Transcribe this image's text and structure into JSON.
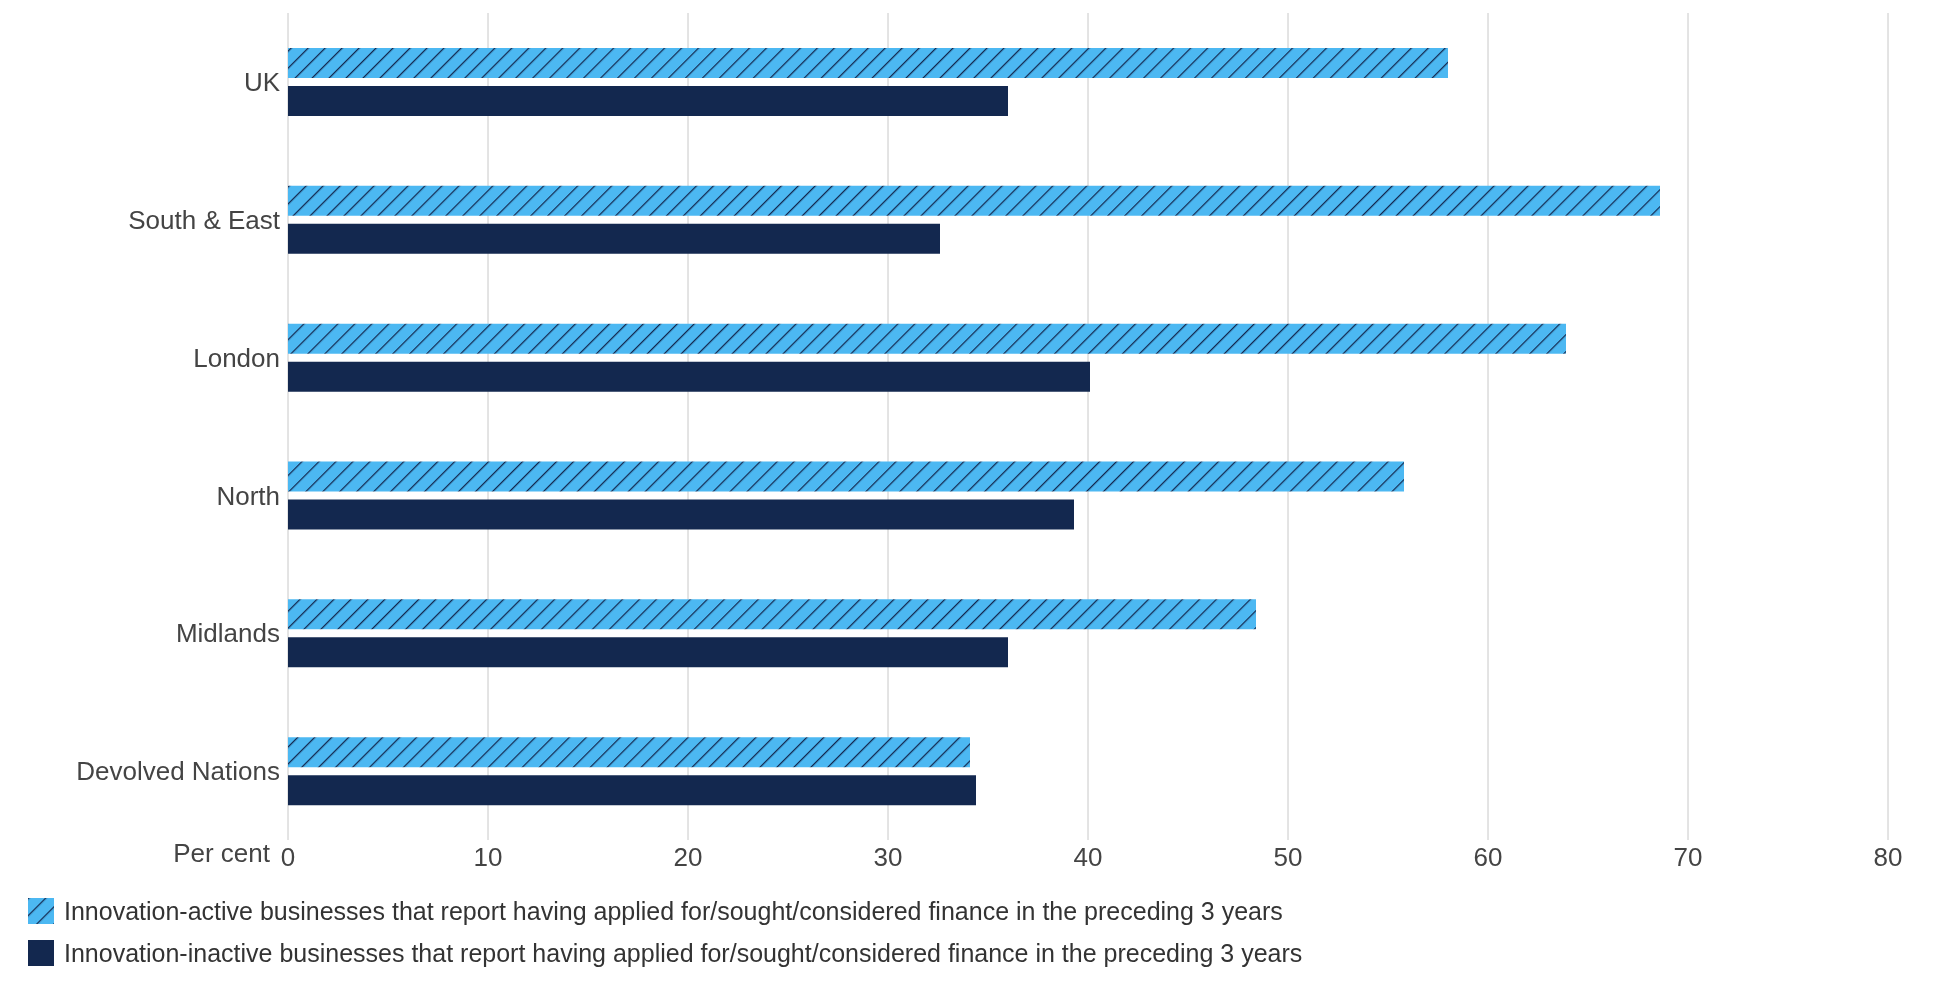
{
  "chart_data": {
    "type": "bar",
    "orientation": "horizontal",
    "categories": [
      "UK",
      "South & East",
      "London",
      "North",
      "Midlands",
      "Devolved Nations"
    ],
    "series": [
      {
        "name": "Innovation-active businesses that report having applied for/sought/considered finance in the preceding 3 years",
        "color": "#4cb8f2",
        "values": [
          58.0,
          68.6,
          63.9,
          55.8,
          48.4,
          34.1
        ]
      },
      {
        "name": "Innovation-inactive businesses that report having applied for/sought/considered finance in the preceding 3 years",
        "color": "#13284f",
        "values": [
          36.0,
          32.6,
          40.1,
          39.3,
          36.0,
          34.4
        ]
      }
    ],
    "xlabel": "Per cent",
    "xlim": [
      0,
      80
    ],
    "xticks": [
      0,
      10,
      20,
      30,
      40,
      50,
      60,
      70,
      80
    ],
    "grid": "x",
    "legend": "bottom"
  }
}
